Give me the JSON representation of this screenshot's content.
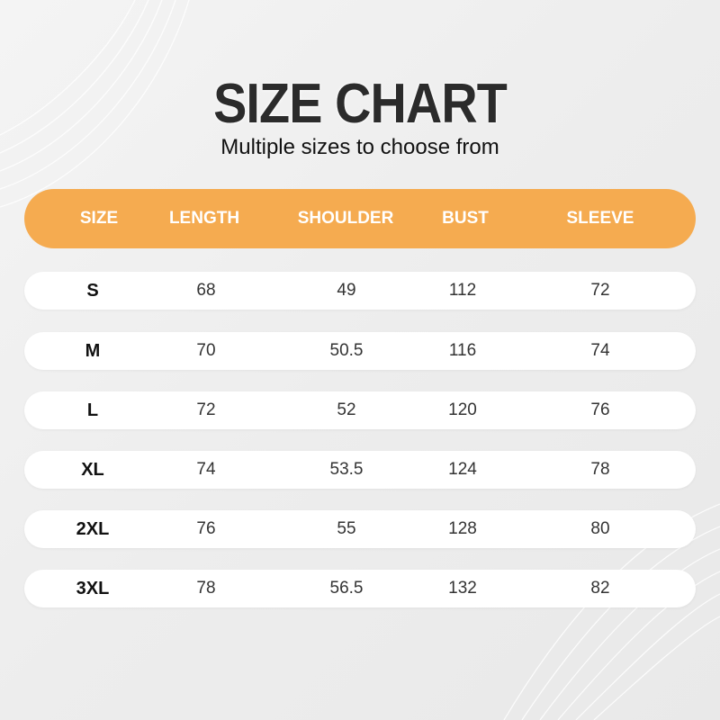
{
  "title": "SIZE CHART",
  "subtitle": "Multiple sizes to choose from",
  "accent_color": "#f5ab50",
  "columns": [
    "SIZE",
    "LENGTH",
    "SHOULDER",
    "BUST",
    "SLEEVE"
  ],
  "rows": [
    [
      "S",
      "68",
      "49",
      "112",
      "72"
    ],
    [
      "M",
      "70",
      "50.5",
      "116",
      "74"
    ],
    [
      "L",
      "72",
      "52",
      "120",
      "76"
    ],
    [
      "XL",
      "74",
      "53.5",
      "124",
      "78"
    ],
    [
      "2XL",
      "76",
      "55",
      "128",
      "80"
    ],
    [
      "3XL",
      "78",
      "56.5",
      "132",
      "82"
    ]
  ]
}
